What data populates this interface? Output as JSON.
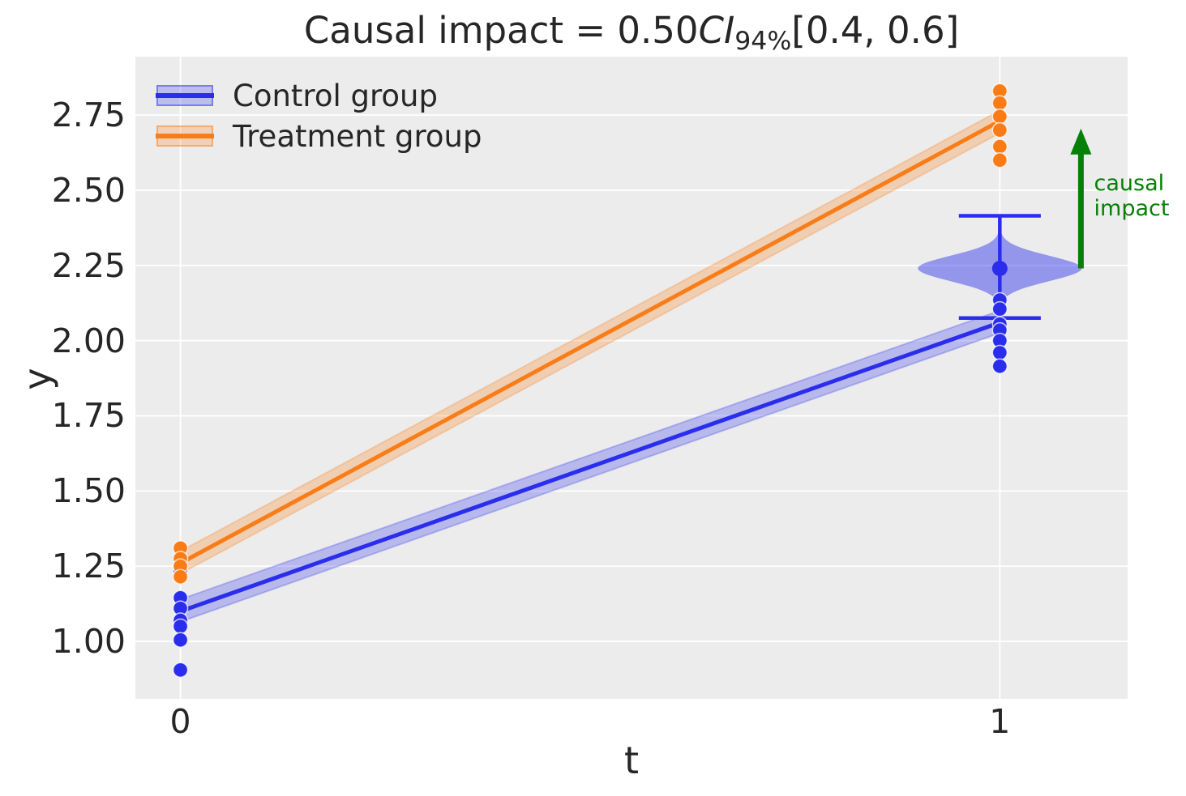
{
  "title": {
    "prefix": "Causal impact = 0.50",
    "ci_symbol": "CI",
    "ci_subscript": "94%",
    "interval": "[0.4, 0.6]"
  },
  "legend": {
    "items": [
      {
        "label": "Control group",
        "color_key": "control"
      },
      {
        "label": "Treatment group",
        "color_key": "treatment"
      }
    ]
  },
  "annotation": {
    "lines": [
      "causal",
      "impact"
    ]
  },
  "colors": {
    "control": "#2a2eec",
    "treatment": "#fa7c17",
    "arrow": "#068006",
    "axes_bg": "#ececec",
    "grid": "#ffffff",
    "text": "#262626"
  },
  "chart_data": {
    "type": "line",
    "title": "Causal impact = 0.50 CI94% [0.4, 0.6]",
    "xlabel": "t",
    "ylabel": "y",
    "xlim": [
      -0.055,
      1.156
    ],
    "ylim": [
      0.809,
      2.944
    ],
    "xticks": [
      0,
      1
    ],
    "xtick_labels": [
      "0",
      "1"
    ],
    "yticks": [
      1.0,
      1.25,
      1.5,
      1.75,
      2.0,
      2.25,
      2.5,
      2.75
    ],
    "ytick_labels": [
      "1.00",
      "1.25",
      "1.50",
      "1.75",
      "2.00",
      "2.25",
      "2.50",
      "2.75"
    ],
    "grid": true,
    "legend_position": "upper left",
    "series": [
      {
        "name": "Control group",
        "color_key": "control",
        "x": [
          0,
          1
        ],
        "y": [
          1.1,
          2.06
        ],
        "band_lo": [
          1.065,
          2.025
        ],
        "band_hi": [
          1.14,
          2.1
        ],
        "scatter": [
          {
            "t": 0,
            "values": [
              1.235,
              1.145,
              1.11,
              1.07,
              1.05,
              1.005,
              0.905
            ]
          },
          {
            "t": 1,
            "values": [
              2.135,
              2.105,
              2.055,
              2.035,
              2.0,
              1.96,
              1.915
            ]
          }
        ]
      },
      {
        "name": "Treatment group",
        "color_key": "treatment",
        "x": [
          0,
          1
        ],
        "y": [
          1.26,
          2.73
        ],
        "band_lo": [
          1.225,
          2.69
        ],
        "band_hi": [
          1.3,
          2.765
        ],
        "scatter": [
          {
            "t": 0,
            "values": [
              1.31,
              1.275,
              1.25,
              1.215
            ]
          },
          {
            "t": 1,
            "values": [
              2.83,
              2.79,
              2.745,
              2.7,
              2.645,
              2.6
            ]
          }
        ]
      }
    ],
    "counterfactual_violin": {
      "t": 1,
      "mean": 2.24,
      "hdi_low": 2.075,
      "hdi_high": 2.415,
      "body_low": 2.115,
      "body_high": 2.4,
      "sigma": 0.042,
      "max_halfwidth_t": 0.1,
      "cap_halfwidth_t": 0.05
    },
    "impact_arrow": {
      "t": 1.099,
      "from": 2.24,
      "to": 2.705,
      "label_t": 1.115,
      "label_y": 2.481
    }
  }
}
